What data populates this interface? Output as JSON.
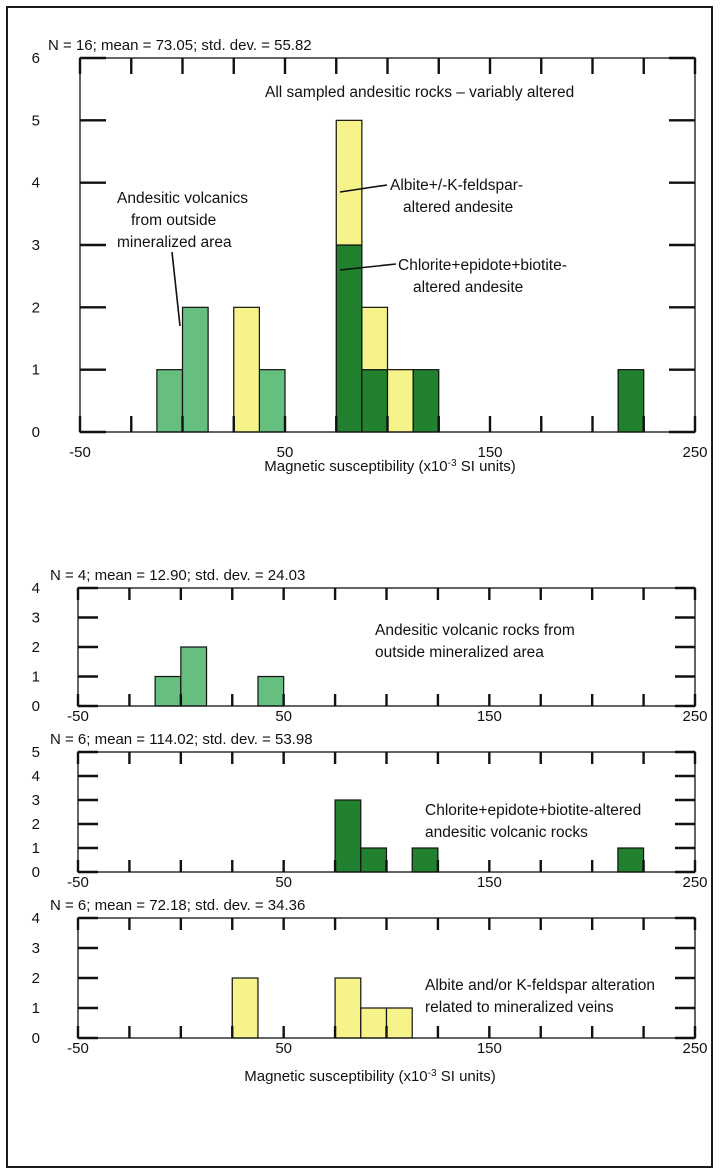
{
  "colors": {
    "light_green": "#66bf7e",
    "dark_green": "#22812f",
    "yellow": "#f7f38b"
  },
  "chart_data": [
    {
      "type": "bar",
      "stats": "N = 16; mean = 73.05; std. dev. = 55.82",
      "title": "All sampled andesitic rocks – variably altered",
      "xlabel": "Magnetic susceptibility (x10⁻³ SI units)",
      "xlim": [
        -50,
        250
      ],
      "ylim": [
        0,
        6
      ],
      "x_ticks": [
        "-50",
        "50",
        "150",
        "250"
      ],
      "y_ticks": [
        "0",
        "1",
        "2",
        "3",
        "4",
        "5",
        "6"
      ],
      "bin_width": 12.5,
      "stacked": true,
      "series": [
        {
          "color_key": "light_green",
          "bins": [
            {
              "x": -12.5,
              "count": 1
            },
            {
              "x": 0,
              "count": 2
            },
            {
              "x": 37.5,
              "count": 1
            }
          ]
        },
        {
          "color_key": "dark_green",
          "bins": [
            {
              "x": 75,
              "count": 3
            },
            {
              "x": 87.5,
              "count": 1
            },
            {
              "x": 112.5,
              "count": 1
            },
            {
              "x": 212.5,
              "count": 1
            }
          ]
        },
        {
          "color_key": "yellow",
          "bins": [
            {
              "x": 25,
              "count": 2
            },
            {
              "x": 75,
              "count": 2
            },
            {
              "x": 87.5,
              "count": 1
            },
            {
              "x": 100,
              "count": 1
            }
          ]
        }
      ],
      "annotations": [
        "Andesitic volcanics",
        "from outside",
        "mineralized area",
        "Albite+/-K-feldspar-",
        "altered andesite",
        "Chlorite+epidote+biotite-",
        "altered andesite"
      ]
    },
    {
      "type": "bar",
      "stats": "N = 4; mean = 12.90; std. dev. = 24.03",
      "title": "Andesitic volcanic rocks from outside mineralized area",
      "title_lines": [
        "Andesitic volcanic rocks from",
        "outside mineralized area"
      ],
      "xlim": [
        -50,
        250
      ],
      "ylim": [
        0,
        4
      ],
      "x_ticks": [
        "-50",
        "50",
        "150",
        "250"
      ],
      "y_ticks": [
        "0",
        "1",
        "2",
        "3",
        "4"
      ],
      "bin_width": 12.5,
      "series": [
        {
          "color_key": "light_green",
          "bins": [
            {
              "x": -12.5,
              "count": 1
            },
            {
              "x": 0,
              "count": 2
            },
            {
              "x": 37.5,
              "count": 1
            }
          ]
        }
      ]
    },
    {
      "type": "bar",
      "stats": "N = 6; mean = 114.02; std. dev. = 53.98",
      "title": "Chlorite+epidote+biotite-altered andesitic volcanic rocks",
      "title_lines": [
        "Chlorite+epidote+biotite-altered",
        "andesitic volcanic rocks"
      ],
      "xlim": [
        -50,
        250
      ],
      "ylim": [
        0,
        5
      ],
      "x_ticks": [
        "-50",
        "50",
        "150",
        "250"
      ],
      "y_ticks": [
        "0",
        "1",
        "2",
        "3",
        "4",
        "5"
      ],
      "bin_width": 12.5,
      "series": [
        {
          "color_key": "dark_green",
          "bins": [
            {
              "x": 75,
              "count": 3
            },
            {
              "x": 87.5,
              "count": 1
            },
            {
              "x": 112.5,
              "count": 1
            },
            {
              "x": 212.5,
              "count": 1
            }
          ]
        }
      ]
    },
    {
      "type": "bar",
      "stats": "N = 6; mean = 72.18; std. dev. = 34.36",
      "title": "Albite and/or K-feldspar alteration related to mineralized veins",
      "title_lines": [
        "Albite and/or K-feldspar alteration",
        "related to mineralized veins"
      ],
      "xlabel": "Magnetic susceptibility (x10⁻³ SI units)",
      "xlim": [
        -50,
        250
      ],
      "ylim": [
        0,
        4
      ],
      "x_ticks": [
        "-50",
        "50",
        "150",
        "250"
      ],
      "y_ticks": [
        "0",
        "1",
        "2",
        "3",
        "4"
      ],
      "bin_width": 12.5,
      "series": [
        {
          "color_key": "yellow",
          "bins": [
            {
              "x": 25,
              "count": 2
            },
            {
              "x": 75,
              "count": 2
            },
            {
              "x": 87.5,
              "count": 1
            },
            {
              "x": 100,
              "count": 1
            }
          ]
        }
      ]
    }
  ]
}
